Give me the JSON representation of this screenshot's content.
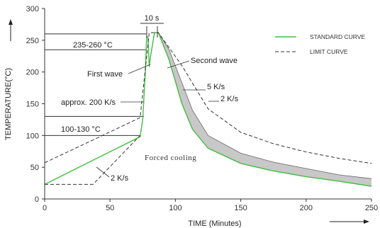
{
  "chart_data": {
    "type": "line",
    "xlabel": "TIME (Minutes)",
    "ylabel": "TEMPERATURE(°C)",
    "xlim": [
      0,
      250
    ],
    "ylim": [
      0,
      300
    ],
    "xticks": [
      "0",
      "50",
      "100",
      "150",
      "200",
      "250"
    ],
    "yticks": [
      "0",
      "50",
      "100",
      "150",
      "200",
      "250",
      "300"
    ],
    "grid": false,
    "legend_position": "top-right",
    "legend": [
      {
        "name": "STANDARD CURVE",
        "color": "#44bb44",
        "style": "solid"
      },
      {
        "name": "LIMIT CURVE",
        "color": "#333333",
        "style": "dashed"
      }
    ],
    "series": [
      {
        "name": "STANDARD CURVE",
        "style": "solid",
        "color": "#44bb44",
        "points": [
          [
            0,
            23
          ],
          [
            73,
            98
          ],
          [
            75,
            125
          ],
          [
            77,
            200
          ],
          [
            78,
            255
          ],
          [
            79,
            255
          ],
          [
            80,
            208
          ],
          [
            81,
            225
          ],
          [
            84,
            262
          ],
          [
            87,
            262
          ],
          [
            95,
            220
          ],
          [
            105,
            150
          ],
          [
            113,
            110
          ],
          [
            125,
            80
          ],
          [
            150,
            56
          ],
          [
            175,
            44
          ],
          [
            200,
            35
          ],
          [
            225,
            28
          ],
          [
            250,
            20
          ]
        ]
      },
      {
        "name": "LIMIT CURVE (lower)",
        "style": "dashed",
        "color": "#333333",
        "points": [
          [
            0,
            23
          ],
          [
            37,
            23
          ],
          [
            73,
            100
          ]
        ]
      },
      {
        "name": "LIMIT CURVE (upper)",
        "style": "dashed",
        "color": "#333333",
        "points": [
          [
            0,
            57
          ],
          [
            73,
            128
          ],
          [
            80,
            262
          ],
          [
            87,
            262
          ],
          [
            105,
            210
          ],
          [
            125,
            142
          ],
          [
            150,
            105
          ],
          [
            175,
            87
          ],
          [
            200,
            74
          ],
          [
            225,
            64
          ],
          [
            250,
            56
          ]
        ]
      }
    ],
    "band": {
      "name": "cooling tolerance band",
      "color": "#c8c8c8",
      "lower": [
        [
          87,
          262
        ],
        [
          95,
          220
        ],
        [
          105,
          150
        ],
        [
          113,
          110
        ],
        [
          125,
          80
        ],
        [
          150,
          56
        ],
        [
          175,
          44
        ],
        [
          200,
          35
        ],
        [
          225,
          28
        ],
        [
          250,
          20
        ]
      ],
      "upper": [
        [
          87,
          262
        ],
        [
          95,
          236
        ],
        [
          105,
          183
        ],
        [
          113,
          140
        ],
        [
          125,
          100
        ],
        [
          150,
          72
        ],
        [
          175,
          58
        ],
        [
          200,
          48
        ],
        [
          225,
          38
        ],
        [
          250,
          32
        ]
      ]
    },
    "reference_lines": [
      {
        "y": 260,
        "x_from": 0,
        "x_to": 78
      },
      {
        "y": 235,
        "x_from": 0,
        "x_to": 78
      },
      {
        "y": 130,
        "x_from": 0,
        "x_to": 76
      },
      {
        "y": 100,
        "x_from": 0,
        "x_to": 73
      }
    ],
    "annotations": {
      "ten_s": "10 s",
      "peak_range": "235-260 °C",
      "first_wave": "First wave",
      "second_wave": "Second wave",
      "ramp_rate": "approx. 200 K/s",
      "preheat_range": "100-130 °C",
      "rate_2ks_low": "2 K/s",
      "rate_5ks": "5 K/s",
      "rate_2ks_high": "2 K/s",
      "forced_cooling": "Forced cooling"
    }
  }
}
